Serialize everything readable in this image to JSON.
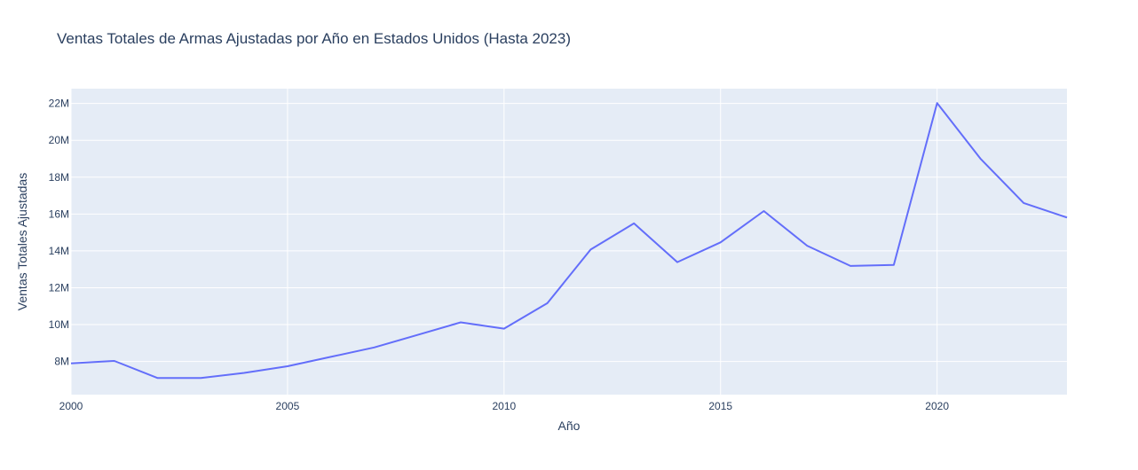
{
  "chart_data": {
    "type": "line",
    "title": "Ventas Totales de Armas Ajustadas por Año en Estados Unidos (Hasta 2023)",
    "xlabel": "Año",
    "ylabel": "Ventas Totales Ajustadas",
    "xlim": [
      2000,
      2023
    ],
    "ylim": [
      6200000,
      22800000
    ],
    "x_ticks": [
      2000,
      2005,
      2010,
      2015,
      2020
    ],
    "x_tick_labels": [
      "2000",
      "2005",
      "2010",
      "2015",
      "2020"
    ],
    "y_ticks": [
      8000000,
      10000000,
      12000000,
      14000000,
      16000000,
      18000000,
      20000000,
      22000000
    ],
    "y_tick_labels": [
      "8M",
      "10M",
      "12M",
      "14M",
      "16M",
      "18M",
      "20M",
      "22M"
    ],
    "grid": true,
    "colors": {
      "line": "#636efa",
      "plot_bg": "#e5ecf6",
      "grid": "#ffffff",
      "text": "#2a3f5f"
    },
    "x": [
      2000,
      2001,
      2002,
      2003,
      2004,
      2005,
      2006,
      2007,
      2008,
      2009,
      2010,
      2011,
      2012,
      2013,
      2014,
      2015,
      2016,
      2017,
      2018,
      2019,
      2020,
      2021,
      2022,
      2023
    ],
    "y": [
      7900000,
      8030000,
      7100000,
      7100000,
      7380000,
      7740000,
      8250000,
      8760000,
      9440000,
      10120000,
      9780000,
      11160000,
      14070000,
      15490000,
      13390000,
      14460000,
      16160000,
      14280000,
      13180000,
      13240000,
      22020000,
      19010000,
      16600000,
      15810000
    ]
  }
}
